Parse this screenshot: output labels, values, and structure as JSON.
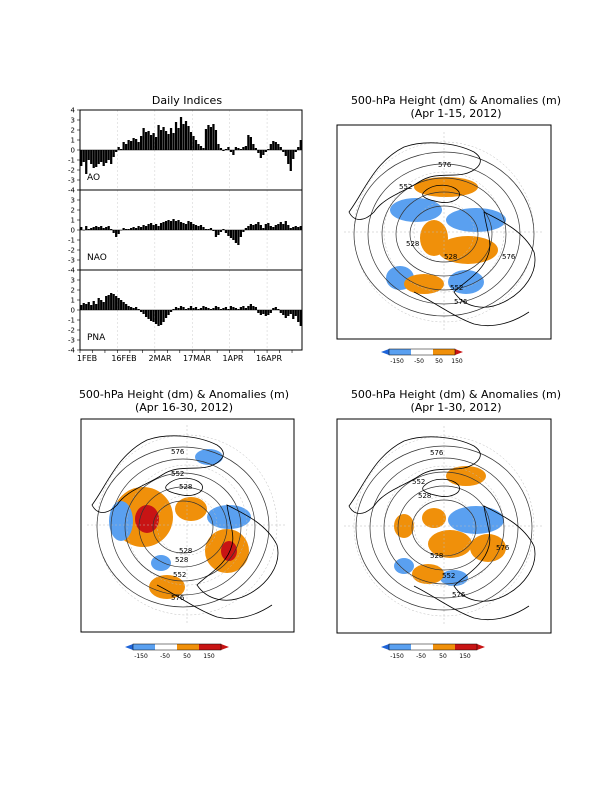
{
  "indices_panel": {
    "title": "Daily Indices",
    "x_tick_labels": [
      "1FEB",
      "16FEB",
      "2MAR",
      "17MAR",
      "1APR",
      "16APR"
    ],
    "y_ticks": [
      "4",
      "3",
      "2",
      "1",
      "0",
      "-1",
      "-2",
      "-3",
      "-4"
    ]
  },
  "maps": [
    {
      "title_line1": "500-hPa Height (dm) & Anomalies (m)",
      "title_line2": "(Apr 1-15, 2012)",
      "contour_labels": [
        "576",
        "552",
        "528",
        "528",
        "552",
        "576",
        "576"
      ]
    },
    {
      "title_line1": "500-hPa Height (dm) & Anomalies (m)",
      "title_line2": "(Apr 16-30, 2012)",
      "contour_labels": [
        "576",
        "552",
        "528",
        "528",
        "528",
        "552",
        "576"
      ]
    },
    {
      "title_line1": "500-hPa Height (dm) & Anomalies (m)",
      "title_line2": "(Apr 1-30, 2012)",
      "contour_labels": [
        "576",
        "552",
        "528",
        "528",
        "552",
        "576",
        "576"
      ]
    }
  ],
  "colorbar": {
    "labels": [
      "-150",
      "-50",
      "50",
      "150"
    ],
    "colors": {
      "strong_negative": "#1e64d8",
      "negative": "#5aa0f0",
      "neutral": "#ffffff",
      "positive": "#f0900a",
      "strong_positive": "#c81414"
    }
  },
  "chart_data": [
    {
      "type": "bar",
      "title": "Daily Indices",
      "x_tick_labels": [
        "1FEB",
        "16FEB",
        "2MAR",
        "17MAR",
        "1APR",
        "16APR"
      ],
      "x_start": "2012-02-01",
      "series": [
        {
          "name": "AO",
          "ylim": [
            -4,
            4
          ],
          "values": [
            -1.6,
            -1.2,
            -2.4,
            -1.0,
            -1.4,
            -1.8,
            -1.7,
            -1.4,
            -1.2,
            -1.6,
            -1.3,
            -1.0,
            -1.4,
            -0.7,
            -0.2,
            0.3,
            0.1,
            0.8,
            0.6,
            1.0,
            0.9,
            1.2,
            1.1,
            0.8,
            1.4,
            2.2,
            1.8,
            1.9,
            1.5,
            1.7,
            1.3,
            2.5,
            2.0,
            2.3,
            1.9,
            1.6,
            2.2,
            1.7,
            2.8,
            2.2,
            3.3,
            2.6,
            2.9,
            2.4,
            1.8,
            1.4,
            1.0,
            0.6,
            0.4,
            0.2,
            2.1,
            2.5,
            2.3,
            2.6,
            2.0,
            0.6,
            0.2,
            -0.1,
            0.1,
            0.3,
            -0.2,
            -0.5,
            0.3,
            0.2,
            0.1,
            0.3,
            0.4,
            1.5,
            1.3,
            0.6,
            0.2,
            -0.3,
            -0.8,
            -0.5,
            -0.2,
            0.1,
            0.6,
            0.9,
            0.8,
            0.6,
            0.3,
            -0.2,
            -0.6,
            -1.4,
            -2.1,
            -0.9,
            -0.2,
            0.3,
            1.0
          ]
        },
        {
          "name": "NAO",
          "ylim": [
            -4,
            4
          ],
          "values": [
            0.3,
            0.0,
            0.4,
            0.1,
            0.2,
            0.3,
            0.4,
            0.3,
            0.4,
            0.2,
            0.3,
            0.4,
            0.1,
            -0.3,
            -0.7,
            -0.4,
            0.0,
            0.2,
            0.1,
            0.1,
            0.2,
            0.3,
            0.2,
            0.4,
            0.3,
            0.5,
            0.4,
            0.6,
            0.7,
            0.5,
            0.6,
            0.4,
            0.7,
            0.8,
            0.9,
            1.0,
            0.9,
            1.1,
            0.9,
            1.0,
            0.8,
            0.7,
            0.6,
            0.9,
            0.8,
            0.6,
            0.5,
            0.4,
            0.5,
            0.3,
            0.1,
            0.1,
            0.2,
            -0.1,
            -0.7,
            -0.5,
            -0.2,
            0.1,
            -0.3,
            -0.6,
            -0.8,
            -1.0,
            -1.3,
            -1.5,
            -0.7,
            -0.2,
            0.2,
            0.4,
            0.6,
            0.5,
            0.6,
            0.8,
            0.5,
            0.2,
            0.6,
            0.7,
            0.4,
            0.3,
            0.5,
            0.6,
            0.8,
            0.6,
            0.9,
            0.5,
            0.2,
            0.3,
            0.4,
            0.3,
            0.4
          ]
        },
        {
          "name": "PNA",
          "ylim": [
            -4,
            4
          ],
          "values": [
            0.5,
            0.7,
            0.6,
            0.8,
            0.5,
            0.9,
            0.6,
            1.2,
            1.0,
            0.8,
            1.4,
            1.5,
            1.7,
            1.6,
            1.4,
            1.2,
            1.0,
            0.8,
            0.6,
            0.4,
            0.3,
            0.2,
            0.3,
            0.1,
            -0.2,
            -0.4,
            -0.7,
            -0.9,
            -1.1,
            -1.2,
            -1.4,
            -1.6,
            -1.5,
            -1.2,
            -0.8,
            -0.5,
            -0.2,
            0.1,
            0.3,
            0.2,
            0.4,
            0.3,
            0.1,
            0.2,
            0.4,
            0.2,
            0.3,
            0.1,
            0.2,
            0.4,
            0.3,
            0.2,
            0.1,
            0.2,
            0.4,
            0.3,
            0.1,
            0.2,
            0.3,
            0.1,
            0.4,
            0.3,
            0.2,
            0.1,
            0.3,
            0.4,
            0.2,
            0.4,
            0.6,
            0.4,
            0.3,
            -0.3,
            -0.5,
            -0.4,
            -0.6,
            -0.5,
            -0.3,
            0.2,
            0.3,
            0.1,
            -0.3,
            -0.5,
            -0.8,
            -0.6,
            -0.4,
            -0.9,
            -0.6,
            -1.2,
            -1.6
          ]
        }
      ]
    },
    {
      "type": "heatmap",
      "title": "500-hPa Height (dm) & Anomalies (m)",
      "subtitle": "(Apr 1-15, 2012)",
      "contour_levels_dm": [
        528,
        552,
        576
      ],
      "anomaly_bins_m": [
        -150,
        -50,
        50,
        150
      ]
    },
    {
      "type": "heatmap",
      "title": "500-hPa Height (dm) & Anomalies (m)",
      "subtitle": "(Apr 16-30, 2012)",
      "contour_levels_dm": [
        528,
        552,
        576
      ],
      "anomaly_bins_m": [
        -150,
        -50,
        50,
        150
      ]
    },
    {
      "type": "heatmap",
      "title": "500-hPa Height (dm) & Anomalies (m)",
      "subtitle": "(Apr 1-30, 2012)",
      "contour_levels_dm": [
        528,
        552,
        576
      ],
      "anomaly_bins_m": [
        -150,
        -50,
        50,
        150
      ]
    }
  ]
}
